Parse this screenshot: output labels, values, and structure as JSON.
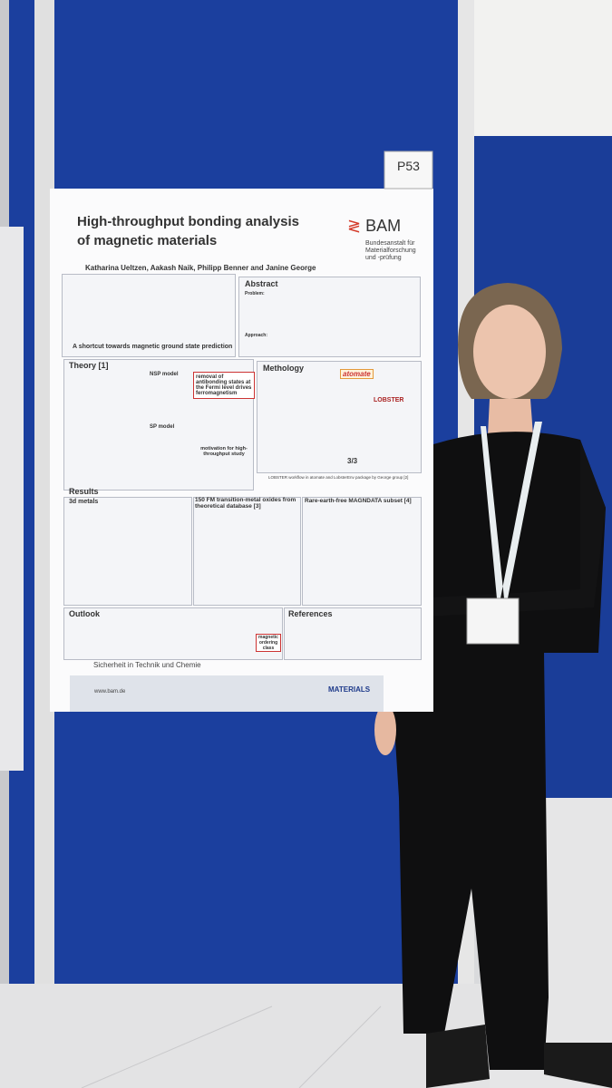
{
  "board": {
    "label": "P53"
  },
  "poster": {
    "title_lines": [
      "High-throughput bonding analysis",
      "of magnetic materials"
    ],
    "logo": "BAM",
    "institute_lines": [
      "Bundesanstalt für",
      "Materialforschung",
      "und -prüfung"
    ],
    "authors": "Katharina Ueltzen, Aakash Naik, Philipp Benner and Janine George",
    "intro_caption": "A shortcut towards magnetic ground state prediction",
    "abstract": {
      "heading": "Abstract",
      "problem_label": "Problem:",
      "approach_label": "Approach:"
    },
    "theory": {
      "heading": "Theory [1]",
      "nsp": "NSP model",
      "sp": "SP model",
      "box": "removal of antibonding states at the Fermi level drives ferromagnetism",
      "motivation": "motivation for high-throughput study"
    },
    "methodology": {
      "heading": "Methology",
      "atomate": "atomate",
      "lobster": "LOBSTER",
      "score": "3/3",
      "caption": "LOBSTER workflow in atomate and LobsterEnv package by George group [2]"
    },
    "results": {
      "heading": "Results",
      "col1": "3d metals",
      "col2": "150 FM transition-metal oxides from theoretical database [3]",
      "col3": "Rare-earth-free MAGNDATA subset [4]"
    },
    "outlook": {
      "heading": "Outlook",
      "box": "magnetic ordering class"
    },
    "references": {
      "heading": "References"
    },
    "footer": {
      "slogan": "Sicherheit in Technik und Chemie",
      "url": "www.bam.de",
      "brand": "MATERIALS"
    }
  }
}
